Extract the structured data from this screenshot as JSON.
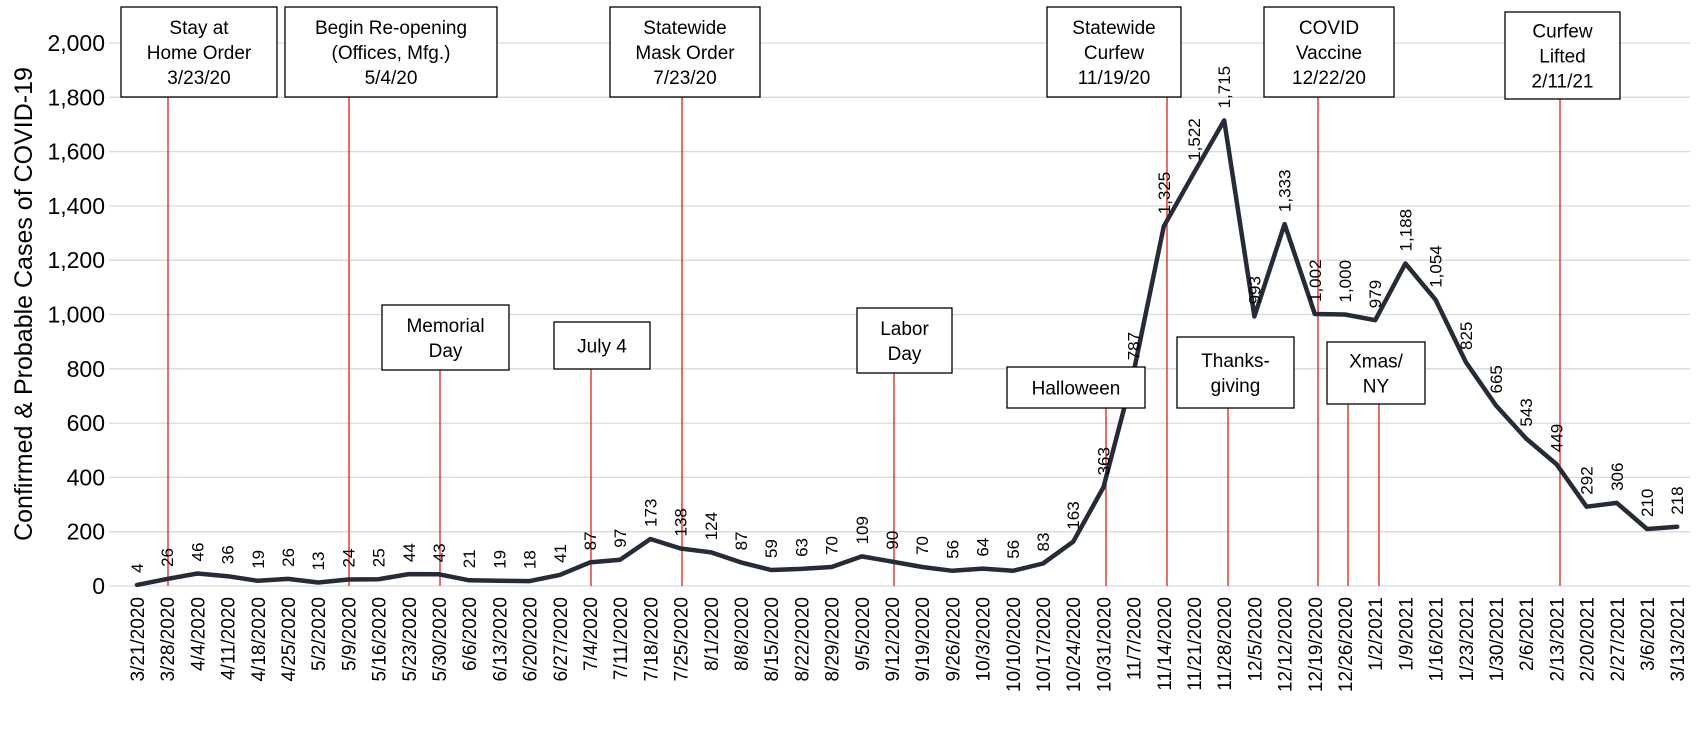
{
  "chart_data": {
    "type": "line",
    "ylabel": "Confirmed & Probable Cases of COVID-19",
    "ylim": [
      0,
      2000
    ],
    "yticks": [
      0,
      200,
      400,
      600,
      800,
      1000,
      1200,
      1400,
      1600,
      1800,
      2000
    ],
    "ytick_labels": [
      "0",
      "200",
      "400",
      "600",
      "800",
      "1,000",
      "1,200",
      "1,400",
      "1,600",
      "1,800",
      "2,000"
    ],
    "grid": "horizontal",
    "categories": [
      "3/21/2020",
      "3/28/2020",
      "4/4/2020",
      "4/11/2020",
      "4/18/2020",
      "4/25/2020",
      "5/2/2020",
      "5/9/2020",
      "5/16/2020",
      "5/23/2020",
      "5/30/2020",
      "6/6/2020",
      "6/13/2020",
      "6/20/2020",
      "6/27/2020",
      "7/4/2020",
      "7/11/2020",
      "7/18/2020",
      "7/25/2020",
      "8/1/2020",
      "8/8/2020",
      "8/15/2020",
      "8/22/2020",
      "8/29/2020",
      "9/5/2020",
      "9/12/2020",
      "9/19/2020",
      "9/26/2020",
      "10/3/2020",
      "10/10/2020",
      "10/17/2020",
      "10/24/2020",
      "10/31/2020",
      "11/7/2020",
      "11/14/2020",
      "11/21/2020",
      "11/28/2020",
      "12/5/2020",
      "12/12/2020",
      "12/19/2020",
      "12/26/2020",
      "1/2/2021",
      "1/9/2021",
      "1/16/2021",
      "1/23/2021",
      "1/30/2021",
      "2/6/2021",
      "2/13/2021",
      "2/20/2021",
      "2/27/2021",
      "3/6/2021",
      "3/13/2021"
    ],
    "series": [
      {
        "values": [
          4,
          26,
          46,
          36,
          19,
          26,
          13,
          24,
          25,
          44,
          43,
          21,
          19,
          18,
          41,
          87,
          97,
          173,
          138,
          124,
          87,
          59,
          63,
          70,
          109,
          90,
          70,
          56,
          64,
          56,
          83,
          163,
          363,
          787,
          1325,
          1522,
          1715,
          993,
          1333,
          1002,
          1000,
          979,
          1188,
          1054,
          825,
          665,
          543,
          449,
          292,
          306,
          210,
          218
        ],
        "data_labels": [
          "4",
          "26",
          "46",
          "36",
          "19",
          "26",
          "13",
          "24",
          "25",
          "44",
          "43",
          "21",
          "19",
          "18",
          "41",
          "87",
          "97",
          "173",
          "138",
          "124",
          "87",
          "59",
          "63",
          "70",
          "109",
          "90",
          "70",
          "56",
          "64",
          "56",
          "83",
          "163",
          "363",
          "787",
          "1,325",
          "1,522",
          "1,715",
          "993",
          "1,333",
          "1,002",
          "1,000",
          "979",
          "1,188",
          "1,054",
          "825",
          "665",
          "543",
          "449",
          "292",
          "306",
          "210",
          "218"
        ],
        "color": "#262b38"
      }
    ],
    "events": [
      {
        "lines": [
          "Stay at",
          "Home Order",
          "3/23/20"
        ],
        "at": "3/23/20",
        "line_color": "#e0301e"
      },
      {
        "lines": [
          "Begin Re-opening",
          "(Offices, Mfg.)",
          "5/4/20"
        ],
        "at": "5/4/20",
        "line_color": "#e0301e"
      },
      {
        "lines": [
          "Memorial",
          "Day"
        ],
        "at": "5/25/20",
        "line_color": "#e0301e"
      },
      {
        "lines": [
          "July 4"
        ],
        "at": "7/4/20",
        "line_color": "#e0301e"
      },
      {
        "lines": [
          "Statewide",
          "Mask Order",
          "7/23/20"
        ],
        "at": "7/23/20",
        "line_color": "#e0301e"
      },
      {
        "lines": [
          "Labor",
          "Day"
        ],
        "at": "9/7/20",
        "line_color": "#e0301e"
      },
      {
        "lines": [
          "Halloween"
        ],
        "at": "10/31/20",
        "line_color": "#e0301e"
      },
      {
        "lines": [
          "Statewide",
          "Curfew",
          "11/19/20"
        ],
        "at": "11/19/20",
        "line_color": "#e0301e"
      },
      {
        "lines": [
          "Thanks-",
          "giving"
        ],
        "at": "11/26/20",
        "line_color": "#e0301e"
      },
      {
        "lines": [
          "COVID",
          "Vaccine",
          "12/22/20"
        ],
        "at": "12/22/20",
        "line_color": "#e0301e"
      },
      {
        "lines": [
          "Xmas/",
          "NY"
        ],
        "at": "12/25/20 – 1/1/21",
        "line_color": "#e0301e"
      },
      {
        "lines": [
          "Curfew",
          "Lifted",
          "2/11/21"
        ],
        "at": "2/11/21",
        "line_color": "#e0301e"
      }
    ]
  }
}
